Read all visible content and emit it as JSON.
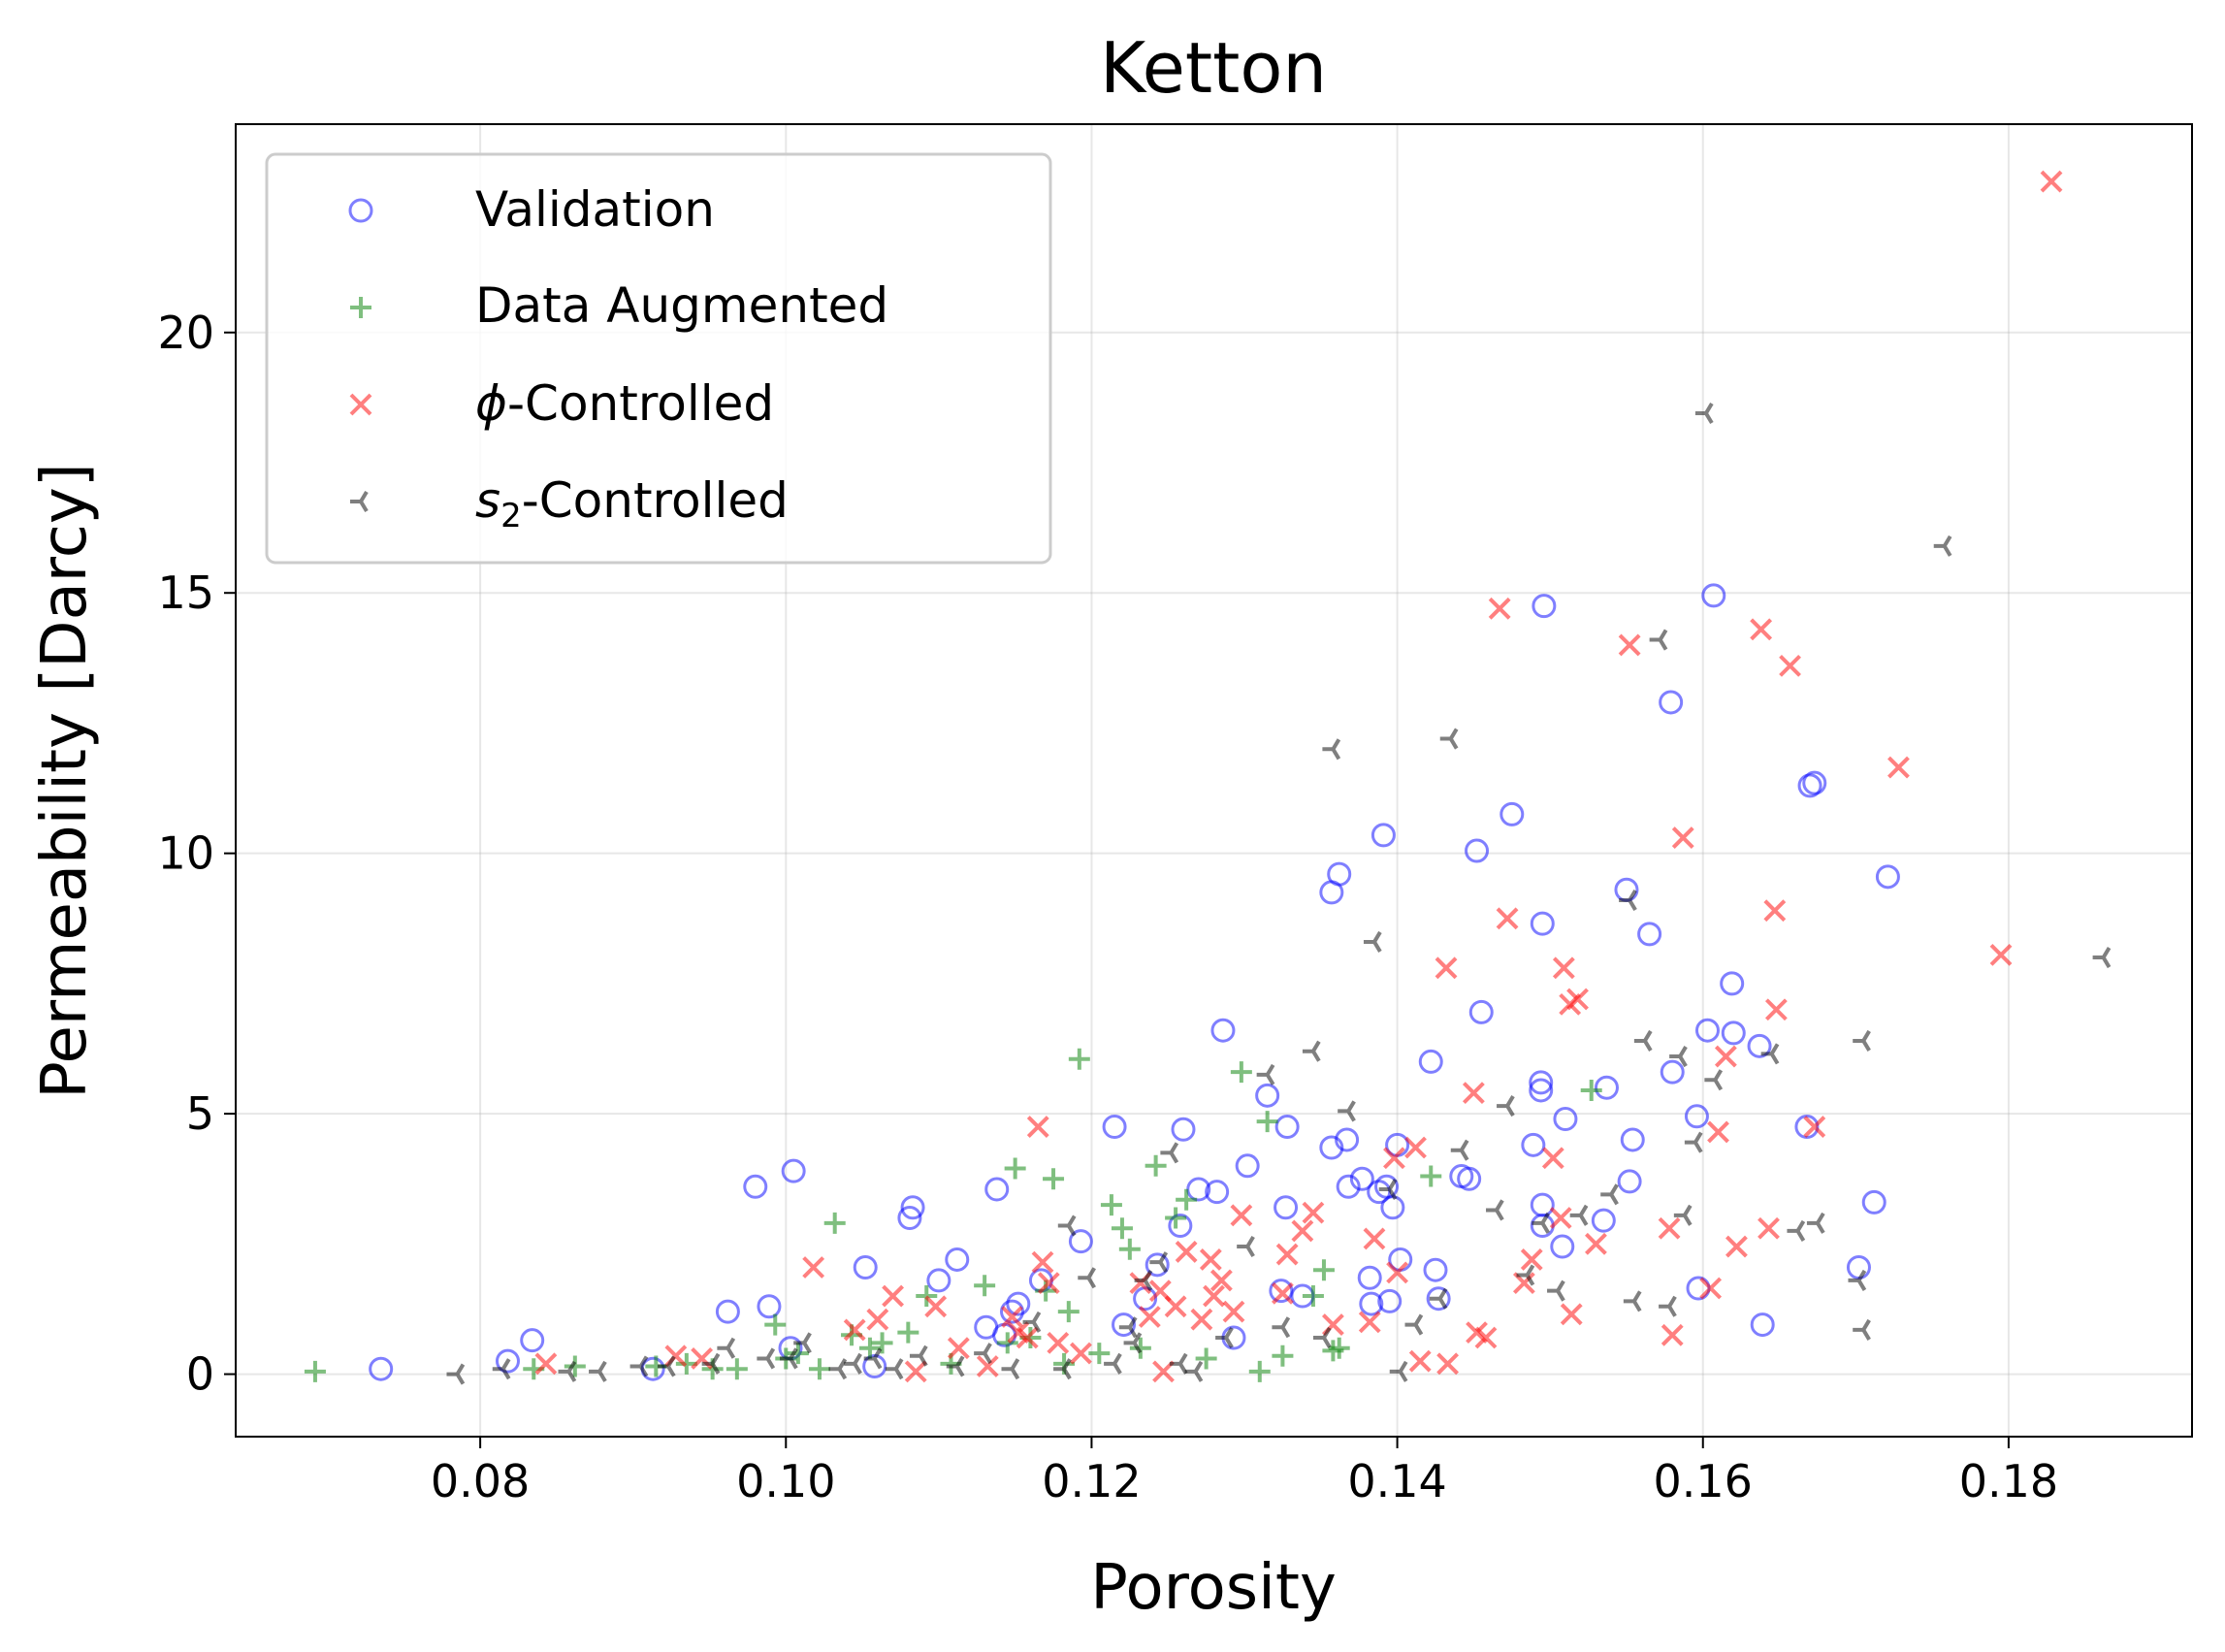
{
  "chart_data": {
    "type": "scatter",
    "title": "Ketton",
    "xlabel": "Porosity",
    "ylabel": "Permeability [Darcy]",
    "xlim": [
      0.064,
      0.192
    ],
    "ylim": [
      -1.2,
      24.0
    ],
    "xticks": [
      0.08,
      0.1,
      0.12,
      0.14,
      0.16,
      0.18
    ],
    "xtick_labels": [
      "0.08",
      "0.10",
      "0.12",
      "0.14",
      "0.16",
      "0.18"
    ],
    "yticks": [
      0,
      5,
      10,
      15,
      20
    ],
    "ytick_labels": [
      "0",
      "5",
      "10",
      "15",
      "20"
    ],
    "grid": true,
    "legend_position": "top-left",
    "series": [
      {
        "name": "Validation",
        "legend_math": "",
        "legend_sub": "",
        "legend_rest": "Validation",
        "marker": "circle",
        "color": "#0000ff",
        "points": [
          [
            0.0735,
            0.1
          ],
          [
            0.0818,
            0.25
          ],
          [
            0.0834,
            0.65
          ],
          [
            0.0913,
            0.1
          ],
          [
            0.0962,
            1.2
          ],
          [
            0.098,
            3.6
          ],
          [
            0.0989,
            1.3
          ],
          [
            0.1003,
            0.5
          ],
          [
            0.1005,
            3.9
          ],
          [
            0.1052,
            2.05
          ],
          [
            0.1058,
            0.15
          ],
          [
            0.1081,
            3.0
          ],
          [
            0.1083,
            3.2
          ],
          [
            0.11,
            1.8
          ],
          [
            0.1112,
            2.2
          ],
          [
            0.1131,
            0.9
          ],
          [
            0.1138,
            3.55
          ],
          [
            0.1143,
            0.75
          ],
          [
            0.1148,
            1.2
          ],
          [
            0.1152,
            1.35
          ],
          [
            0.1167,
            1.8
          ],
          [
            0.1193,
            2.55
          ],
          [
            0.1215,
            4.75
          ],
          [
            0.1221,
            0.95
          ],
          [
            0.1235,
            1.45
          ],
          [
            0.1243,
            2.1
          ],
          [
            0.1258,
            2.85
          ],
          [
            0.126,
            4.7
          ],
          [
            0.127,
            3.55
          ],
          [
            0.1282,
            3.5
          ],
          [
            0.1286,
            6.6
          ],
          [
            0.1293,
            0.7
          ],
          [
            0.1302,
            4.0
          ],
          [
            0.1315,
            5.35
          ],
          [
            0.1324,
            1.6
          ],
          [
            0.1327,
            3.2
          ],
          [
            0.1328,
            4.75
          ],
          [
            0.1338,
            1.5
          ],
          [
            0.1357,
            9.25
          ],
          [
            0.1357,
            4.35
          ],
          [
            0.1362,
            9.6
          ],
          [
            0.1367,
            4.5
          ],
          [
            0.1368,
            3.6
          ],
          [
            0.1377,
            3.75
          ],
          [
            0.1382,
            1.85
          ],
          [
            0.1383,
            1.35
          ],
          [
            0.1388,
            3.5
          ],
          [
            0.1391,
            10.35
          ],
          [
            0.1393,
            3.6
          ],
          [
            0.1395,
            1.4
          ],
          [
            0.1397,
            3.2
          ],
          [
            0.14,
            4.4
          ],
          [
            0.1402,
            2.2
          ],
          [
            0.1422,
            6.0
          ],
          [
            0.1425,
            2.0
          ],
          [
            0.1427,
            1.45
          ],
          [
            0.1442,
            3.8
          ],
          [
            0.1447,
            3.75
          ],
          [
            0.1452,
            10.05
          ],
          [
            0.1455,
            6.95
          ],
          [
            0.1475,
            10.75
          ],
          [
            0.1489,
            4.4
          ],
          [
            0.1494,
            5.6
          ],
          [
            0.1494,
            5.45
          ],
          [
            0.1495,
            8.65
          ],
          [
            0.1495,
            3.25
          ],
          [
            0.1495,
            2.85
          ],
          [
            0.1496,
            14.75
          ],
          [
            0.1508,
            2.45
          ],
          [
            0.151,
            4.9
          ],
          [
            0.1535,
            2.95
          ],
          [
            0.1537,
            5.5
          ],
          [
            0.155,
            9.3
          ],
          [
            0.1552,
            3.7
          ],
          [
            0.1554,
            4.5
          ],
          [
            0.1565,
            8.45
          ],
          [
            0.1579,
            12.9
          ],
          [
            0.158,
            5.8
          ],
          [
            0.1596,
            4.95
          ],
          [
            0.1597,
            1.65
          ],
          [
            0.1603,
            6.6
          ],
          [
            0.1607,
            14.95
          ],
          [
            0.1619,
            7.5
          ],
          [
            0.162,
            6.55
          ],
          [
            0.1637,
            6.3
          ],
          [
            0.1639,
            0.95
          ],
          [
            0.1668,
            4.75
          ],
          [
            0.167,
            11.3
          ],
          [
            0.1673,
            11.35
          ],
          [
            0.1702,
            2.05
          ],
          [
            0.1712,
            3.3
          ],
          [
            0.1721,
            9.55
          ]
        ]
      },
      {
        "name": "Data Augmented",
        "legend_math": "",
        "legend_sub": "",
        "legend_rest": "Data Augmented",
        "marker": "plus",
        "color": "#008000",
        "points": [
          [
            0.0692,
            0.05
          ],
          [
            0.0835,
            0.1
          ],
          [
            0.0862,
            0.15
          ],
          [
            0.0915,
            0.15
          ],
          [
            0.0935,
            0.2
          ],
          [
            0.0952,
            0.1
          ],
          [
            0.0968,
            0.1
          ],
          [
            0.0993,
            0.95
          ],
          [
            0.1,
            0.3
          ],
          [
            0.1008,
            0.4
          ],
          [
            0.1022,
            0.1
          ],
          [
            0.1032,
            2.9
          ],
          [
            0.1043,
            0.75
          ],
          [
            0.1055,
            0.5
          ],
          [
            0.1063,
            0.6
          ],
          [
            0.108,
            0.8
          ],
          [
            0.1092,
            1.5
          ],
          [
            0.1108,
            0.2
          ],
          [
            0.113,
            1.7
          ],
          [
            0.1145,
            0.6
          ],
          [
            0.115,
            3.95
          ],
          [
            0.116,
            0.7
          ],
          [
            0.117,
            1.6
          ],
          [
            0.1175,
            3.75
          ],
          [
            0.1182,
            0.2
          ],
          [
            0.1185,
            1.2
          ],
          [
            0.1192,
            6.05
          ],
          [
            0.1205,
            0.4
          ],
          [
            0.1213,
            3.25
          ],
          [
            0.122,
            2.8
          ],
          [
            0.1225,
            2.4
          ],
          [
            0.1232,
            0.5
          ],
          [
            0.1242,
            4.0
          ],
          [
            0.1255,
            3.0
          ],
          [
            0.1262,
            3.35
          ],
          [
            0.1275,
            0.3
          ],
          [
            0.1298,
            5.8
          ],
          [
            0.131,
            0.05
          ],
          [
            0.1315,
            4.85
          ],
          [
            0.1325,
            0.35
          ],
          [
            0.1345,
            1.5
          ],
          [
            0.1352,
            2.0
          ],
          [
            0.1358,
            0.45
          ],
          [
            0.1362,
            0.5
          ],
          [
            0.1422,
            3.8
          ],
          [
            0.1527,
            5.45
          ]
        ]
      },
      {
        "name": "φ-Controlled",
        "legend_math": "ϕ",
        "legend_sub": "",
        "legend_rest": "-Controlled",
        "marker": "x",
        "color": "#ff0000",
        "points": [
          [
            0.0843,
            0.2
          ],
          [
            0.0928,
            0.35
          ],
          [
            0.0945,
            0.3
          ],
          [
            0.1018,
            2.05
          ],
          [
            0.1045,
            0.85
          ],
          [
            0.106,
            1.05
          ],
          [
            0.107,
            1.5
          ],
          [
            0.1085,
            0.05
          ],
          [
            0.1098,
            1.3
          ],
          [
            0.1113,
            0.5
          ],
          [
            0.1132,
            0.15
          ],
          [
            0.1148,
            1.1
          ],
          [
            0.1152,
            0.8
          ],
          [
            0.1158,
            0.7
          ],
          [
            0.1165,
            4.75
          ],
          [
            0.1168,
            2.15
          ],
          [
            0.1172,
            1.75
          ],
          [
            0.1178,
            0.6
          ],
          [
            0.1193,
            0.4
          ],
          [
            0.1232,
            1.75
          ],
          [
            0.1238,
            1.1
          ],
          [
            0.1245,
            1.6
          ],
          [
            0.1247,
            0.05
          ],
          [
            0.1255,
            1.3
          ],
          [
            0.1262,
            2.35
          ],
          [
            0.1272,
            1.05
          ],
          [
            0.1278,
            2.2
          ],
          [
            0.128,
            1.5
          ],
          [
            0.1285,
            1.8
          ],
          [
            0.1293,
            1.2
          ],
          [
            0.1298,
            3.05
          ],
          [
            0.1325,
            1.55
          ],
          [
            0.1328,
            2.3
          ],
          [
            0.1338,
            2.75
          ],
          [
            0.1345,
            3.1
          ],
          [
            0.1358,
            0.95
          ],
          [
            0.1382,
            1.0
          ],
          [
            0.1385,
            2.6
          ],
          [
            0.1398,
            4.15
          ],
          [
            0.14,
            1.95
          ],
          [
            0.1412,
            4.35
          ],
          [
            0.1432,
            7.8
          ],
          [
            0.1415,
            0.25
          ],
          [
            0.1433,
            0.2
          ],
          [
            0.1452,
            0.8
          ],
          [
            0.1458,
            0.7
          ],
          [
            0.145,
            5.4
          ],
          [
            0.1467,
            14.7
          ],
          [
            0.1472,
            8.75
          ],
          [
            0.1483,
            1.75
          ],
          [
            0.1488,
            2.2
          ],
          [
            0.1502,
            4.15
          ],
          [
            0.1507,
            3.0
          ],
          [
            0.1509,
            7.8
          ],
          [
            0.1513,
            7.1
          ],
          [
            0.1518,
            7.2
          ],
          [
            0.1514,
            1.15
          ],
          [
            0.153,
            2.5
          ],
          [
            0.1552,
            14.0
          ],
          [
            0.1578,
            2.8
          ],
          [
            0.158,
            0.75
          ],
          [
            0.1587,
            10.3
          ],
          [
            0.1605,
            1.65
          ],
          [
            0.161,
            4.65
          ],
          [
            0.1615,
            6.1
          ],
          [
            0.1622,
            2.45
          ],
          [
            0.1638,
            14.3
          ],
          [
            0.1643,
            2.8
          ],
          [
            0.1647,
            8.9
          ],
          [
            0.1648,
            7.0
          ],
          [
            0.1657,
            13.6
          ],
          [
            0.1673,
            4.75
          ],
          [
            0.1728,
            11.65
          ],
          [
            0.1795,
            8.05
          ],
          [
            0.1828,
            22.9
          ]
        ]
      },
      {
        "name": "s2-Controlled",
        "legend_math": "s",
        "legend_sub": "2",
        "legend_rest": "-Controlled",
        "marker": "tri_left",
        "color": "#000000",
        "points": [
          [
            0.0785,
            0.0
          ],
          [
            0.0815,
            0.1
          ],
          [
            0.0858,
            0.05
          ],
          [
            0.0878,
            0.05
          ],
          [
            0.0905,
            0.15
          ],
          [
            0.0923,
            0.15
          ],
          [
            0.0952,
            0.2
          ],
          [
            0.0962,
            0.5
          ],
          [
            0.0988,
            0.3
          ],
          [
            0.1003,
            0.3
          ],
          [
            0.1012,
            0.6
          ],
          [
            0.1035,
            0.1
          ],
          [
            0.1045,
            0.2
          ],
          [
            0.1058,
            0.3
          ],
          [
            0.1072,
            0.1
          ],
          [
            0.1088,
            0.35
          ],
          [
            0.1112,
            0.15
          ],
          [
            0.113,
            0.4
          ],
          [
            0.1148,
            0.1
          ],
          [
            0.1162,
            1.0
          ],
          [
            0.1182,
            0.1
          ],
          [
            0.1185,
            2.85
          ],
          [
            0.1198,
            1.85
          ],
          [
            0.1215,
            0.2
          ],
          [
            0.1225,
            0.9
          ],
          [
            0.1228,
            0.6
          ],
          [
            0.1235,
            1.8
          ],
          [
            0.1245,
            2.15
          ],
          [
            0.1252,
            4.25
          ],
          [
            0.1258,
            0.2
          ],
          [
            0.1268,
            0.05
          ],
          [
            0.1288,
            0.7
          ],
          [
            0.1302,
            2.45
          ],
          [
            0.1315,
            5.75
          ],
          [
            0.1325,
            0.9
          ],
          [
            0.1345,
            6.2
          ],
          [
            0.1352,
            0.7
          ],
          [
            0.1358,
            12.0
          ],
          [
            0.1368,
            5.05
          ],
          [
            0.1385,
            8.3
          ],
          [
            0.1395,
            3.55
          ],
          [
            0.1402,
            0.05
          ],
          [
            0.1412,
            0.95
          ],
          [
            0.1428,
            1.45
          ],
          [
            0.1435,
            12.2
          ],
          [
            0.1442,
            4.3
          ],
          [
            0.1465,
            3.15
          ],
          [
            0.1472,
            5.15
          ],
          [
            0.1485,
            1.9
          ],
          [
            0.1495,
            2.9
          ],
          [
            0.1505,
            1.6
          ],
          [
            0.152,
            3.05
          ],
          [
            0.154,
            3.45
          ],
          [
            0.1552,
            9.1
          ],
          [
            0.1555,
            1.4
          ],
          [
            0.1562,
            6.4
          ],
          [
            0.1572,
            14.1
          ],
          [
            0.1578,
            1.3
          ],
          [
            0.1585,
            6.1
          ],
          [
            0.1588,
            3.05
          ],
          [
            0.1595,
            4.45
          ],
          [
            0.1602,
            18.45
          ],
          [
            0.1608,
            5.65
          ],
          [
            0.1645,
            6.15
          ],
          [
            0.1662,
            2.75
          ],
          [
            0.1675,
            2.9
          ],
          [
            0.1702,
            1.8
          ],
          [
            0.1705,
            0.85
          ],
          [
            0.1705,
            6.4
          ],
          [
            0.1758,
            15.9
          ],
          [
            0.1862,
            8.0
          ]
        ]
      }
    ]
  }
}
